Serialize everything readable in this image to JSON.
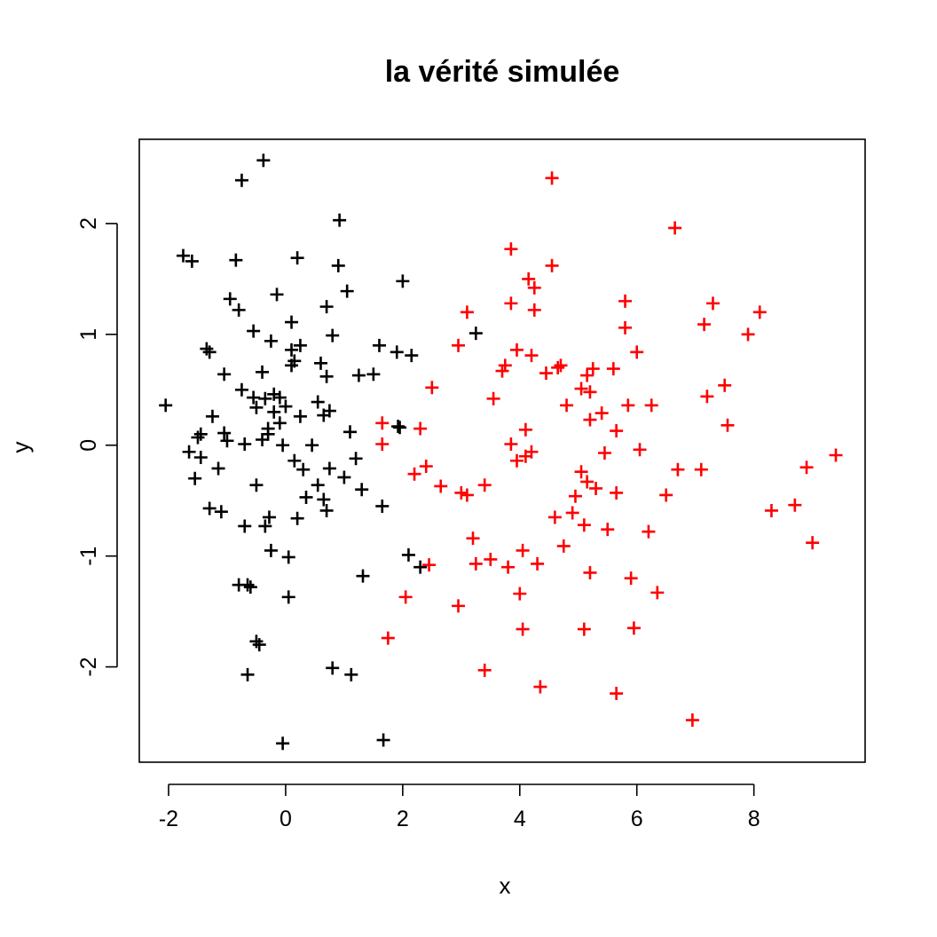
{
  "chart_data": {
    "type": "scatter",
    "title": "la vérité simulée",
    "xlabel": "x",
    "ylabel": "y",
    "xlim": [
      -2.5,
      9.9
    ],
    "ylim": [
      -2.86,
      2.76
    ],
    "xticks": [
      -2,
      0,
      2,
      4,
      6,
      8
    ],
    "yticks": [
      -2,
      -1,
      0,
      1,
      2
    ],
    "xtick_labels": [
      "-2",
      "0",
      "2",
      "4",
      "6",
      "8"
    ],
    "ytick_labels": [
      "-2",
      "-1",
      "0",
      "1",
      "2"
    ],
    "grid": false,
    "legend": "none",
    "marker": "plus",
    "series": [
      {
        "color": "#000000",
        "points": [
          [
            -2.05,
            0.36
          ],
          [
            -1.75,
            1.71
          ],
          [
            -1.6,
            1.66
          ],
          [
            -1.65,
            -0.06
          ],
          [
            -1.55,
            -0.3
          ],
          [
            -1.5,
            0.07
          ],
          [
            -1.45,
            0.1
          ],
          [
            -1.45,
            -0.11
          ],
          [
            -1.35,
            0.87
          ],
          [
            -1.3,
            0.84
          ],
          [
            -1.3,
            -0.57
          ],
          [
            -1.25,
            0.26
          ],
          [
            -1.15,
            -0.21
          ],
          [
            -1.1,
            -0.6
          ],
          [
            -1.05,
            0.64
          ],
          [
            -1.05,
            0.11
          ],
          [
            -1.0,
            0.04
          ],
          [
            -0.95,
            1.32
          ],
          [
            -0.85,
            1.67
          ],
          [
            -0.8,
            1.22
          ],
          [
            -0.8,
            -1.26
          ],
          [
            -0.75,
            2.39
          ],
          [
            -0.75,
            0.5
          ],
          [
            -0.7,
            -0.73
          ],
          [
            -0.7,
            0.01
          ],
          [
            -0.65,
            -2.07
          ],
          [
            -0.65,
            -1.26
          ],
          [
            -0.6,
            -1.28
          ],
          [
            -0.55,
            1.03
          ],
          [
            -0.55,
            0.43
          ],
          [
            -0.5,
            0.34
          ],
          [
            -0.5,
            -0.36
          ],
          [
            -0.5,
            -1.77
          ],
          [
            -0.45,
            -1.8
          ],
          [
            -0.4,
            0.66
          ],
          [
            -0.4,
            0.05
          ],
          [
            -0.38,
            2.57
          ],
          [
            -0.35,
            0.42
          ],
          [
            -0.35,
            -0.73
          ],
          [
            -0.3,
            0.15
          ],
          [
            -0.3,
            0.1
          ],
          [
            -0.28,
            -0.65
          ],
          [
            -0.25,
            0.94
          ],
          [
            -0.25,
            -0.95
          ],
          [
            -0.2,
            0.46
          ],
          [
            -0.2,
            0.3
          ],
          [
            -0.15,
            1.36
          ],
          [
            -0.1,
            0.43
          ],
          [
            -0.1,
            0.2
          ],
          [
            -0.05,
            0.0
          ],
          [
            -0.05,
            -2.69
          ],
          [
            0.0,
            0.35
          ],
          [
            0.05,
            -1.01
          ],
          [
            0.05,
            -1.37
          ],
          [
            0.1,
            1.11
          ],
          [
            0.1,
            0.86
          ],
          [
            0.1,
            0.72
          ],
          [
            0.15,
            0.76
          ],
          [
            0.15,
            -0.14
          ],
          [
            0.2,
            1.69
          ],
          [
            0.2,
            -0.66
          ],
          [
            0.25,
            0.9
          ],
          [
            0.25,
            0.26
          ],
          [
            0.3,
            -0.22
          ],
          [
            0.35,
            -0.47
          ],
          [
            0.45,
            0.0
          ],
          [
            0.55,
            0.39
          ],
          [
            0.55,
            -0.36
          ],
          [
            0.6,
            0.74
          ],
          [
            0.65,
            0.27
          ],
          [
            0.65,
            -0.49
          ],
          [
            0.7,
            1.25
          ],
          [
            0.7,
            0.62
          ],
          [
            0.7,
            -0.59
          ],
          [
            0.75,
            0.31
          ],
          [
            0.75,
            -0.21
          ],
          [
            0.8,
            0.99
          ],
          [
            0.8,
            -2.01
          ],
          [
            0.9,
            1.62
          ],
          [
            0.92,
            2.03
          ],
          [
            1.0,
            -0.29
          ],
          [
            1.05,
            1.39
          ],
          [
            1.1,
            0.12
          ],
          [
            1.12,
            -2.07
          ],
          [
            1.2,
            -0.12
          ],
          [
            1.25,
            0.63
          ],
          [
            1.3,
            -0.4
          ],
          [
            1.32,
            -1.18
          ],
          [
            1.5,
            0.64
          ],
          [
            1.6,
            0.9
          ],
          [
            1.65,
            -0.55
          ],
          [
            1.67,
            -2.66
          ],
          [
            1.9,
            0.84
          ],
          [
            1.92,
            0.17
          ],
          [
            1.95,
            0.16
          ],
          [
            2.0,
            1.48
          ],
          [
            2.1,
            -0.99
          ],
          [
            2.15,
            0.81
          ],
          [
            2.3,
            -1.1
          ],
          [
            3.25,
            1.01
          ]
        ]
      },
      {
        "color": "#ff0000",
        "points": [
          [
            1.65,
            0.2
          ],
          [
            1.65,
            0.01
          ],
          [
            1.75,
            -1.74
          ],
          [
            2.05,
            -1.37
          ],
          [
            2.2,
            -0.26
          ],
          [
            2.3,
            0.15
          ],
          [
            2.4,
            -0.19
          ],
          [
            2.45,
            -1.08
          ],
          [
            2.5,
            0.52
          ],
          [
            2.65,
            -0.37
          ],
          [
            2.95,
            0.9
          ],
          [
            2.95,
            -1.45
          ],
          [
            3.0,
            -0.43
          ],
          [
            3.1,
            -0.45
          ],
          [
            3.1,
            1.2
          ],
          [
            3.2,
            -0.84
          ],
          [
            3.25,
            -1.07
          ],
          [
            3.4,
            -0.36
          ],
          [
            3.4,
            -2.03
          ],
          [
            3.5,
            -1.03
          ],
          [
            3.55,
            0.42
          ],
          [
            3.7,
            0.67
          ],
          [
            3.75,
            0.72
          ],
          [
            3.8,
            -1.1
          ],
          [
            3.85,
            0.01
          ],
          [
            3.85,
            1.77
          ],
          [
            3.85,
            1.28
          ],
          [
            3.95,
            0.86
          ],
          [
            3.95,
            -0.14
          ],
          [
            4.0,
            -1.34
          ],
          [
            4.05,
            -1.66
          ],
          [
            4.05,
            -0.95
          ],
          [
            4.1,
            -0.1
          ],
          [
            4.1,
            0.14
          ],
          [
            4.15,
            1.5
          ],
          [
            4.2,
            -0.06
          ],
          [
            4.2,
            0.81
          ],
          [
            4.25,
            1.42
          ],
          [
            4.25,
            1.22
          ],
          [
            4.3,
            -1.07
          ],
          [
            4.35,
            -2.18
          ],
          [
            4.45,
            0.65
          ],
          [
            4.55,
            1.62
          ],
          [
            4.55,
            2.41
          ],
          [
            4.6,
            -0.65
          ],
          [
            4.65,
            0.7
          ],
          [
            4.7,
            0.72
          ],
          [
            4.75,
            -0.91
          ],
          [
            4.8,
            0.36
          ],
          [
            4.9,
            -0.61
          ],
          [
            4.95,
            -0.46
          ],
          [
            5.05,
            -0.24
          ],
          [
            5.05,
            0.51
          ],
          [
            5.1,
            -0.72
          ],
          [
            5.1,
            -1.66
          ],
          [
            5.15,
            0.63
          ],
          [
            5.15,
            -0.33
          ],
          [
            5.2,
            0.48
          ],
          [
            5.2,
            0.23
          ],
          [
            5.2,
            -1.15
          ],
          [
            5.25,
            0.69
          ],
          [
            5.3,
            -0.39
          ],
          [
            5.4,
            0.29
          ],
          [
            5.45,
            -0.07
          ],
          [
            5.5,
            -0.76
          ],
          [
            5.6,
            0.69
          ],
          [
            5.65,
            0.13
          ],
          [
            5.65,
            -0.43
          ],
          [
            5.65,
            -2.24
          ],
          [
            5.8,
            1.3
          ],
          [
            5.8,
            1.06
          ],
          [
            5.85,
            0.36
          ],
          [
            5.9,
            -1.2
          ],
          [
            5.95,
            -1.65
          ],
          [
            6.0,
            0.84
          ],
          [
            6.05,
            -0.04
          ],
          [
            6.2,
            -0.78
          ],
          [
            6.25,
            0.36
          ],
          [
            6.35,
            -1.33
          ],
          [
            6.5,
            -0.45
          ],
          [
            6.65,
            1.96
          ],
          [
            6.7,
            -0.22
          ],
          [
            6.95,
            -2.48
          ],
          [
            7.1,
            -0.22
          ],
          [
            7.15,
            1.09
          ],
          [
            7.2,
            0.44
          ],
          [
            7.3,
            1.28
          ],
          [
            7.5,
            0.54
          ],
          [
            7.55,
            0.18
          ],
          [
            7.9,
            1.0
          ],
          [
            8.1,
            1.2
          ],
          [
            8.3,
            -0.59
          ],
          [
            8.7,
            -0.54
          ],
          [
            8.9,
            -0.2
          ],
          [
            9.0,
            -0.88
          ],
          [
            9.4,
            -0.09
          ]
        ]
      }
    ]
  }
}
